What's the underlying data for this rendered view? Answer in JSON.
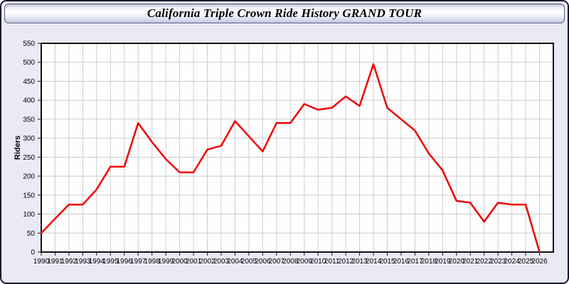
{
  "window": {
    "title": "California Triple Crown Ride History GRAND TOUR"
  },
  "colors": {
    "line": "#ee0000",
    "grid": "#cccccc",
    "plot_border": "#111111",
    "plot_bg": "#fefefe",
    "page_bg": "#eaeaf6",
    "tick_label": "#000000"
  },
  "chart_data": {
    "type": "line",
    "title": "California Triple Crown Ride History GRAND TOUR",
    "xlabel": "",
    "ylabel": "Riders",
    "x": [
      1990,
      1991,
      1992,
      1993,
      1994,
      1995,
      1996,
      1997,
      1998,
      1999,
      2000,
      2001,
      2002,
      2003,
      2004,
      2005,
      2006,
      2007,
      2008,
      2009,
      2010,
      2011,
      2012,
      2013,
      2014,
      2015,
      2016,
      2017,
      2018,
      2019,
      2020,
      2021,
      2022,
      2023,
      2024,
      2025,
      2026
    ],
    "series": [
      {
        "name": "Riders",
        "values": [
          50,
          88,
          125,
          125,
          165,
          225,
          225,
          340,
          290,
          245,
          210,
          210,
          270,
          280,
          345,
          305,
          265,
          340,
          340,
          390,
          375,
          380,
          410,
          385,
          495,
          380,
          350,
          320,
          260,
          215,
          135,
          130,
          80,
          130,
          125,
          125,
          0
        ]
      }
    ],
    "ylim": [
      0,
      550
    ],
    "ytick_step": 50,
    "grid": true,
    "legend_position": "none"
  }
}
